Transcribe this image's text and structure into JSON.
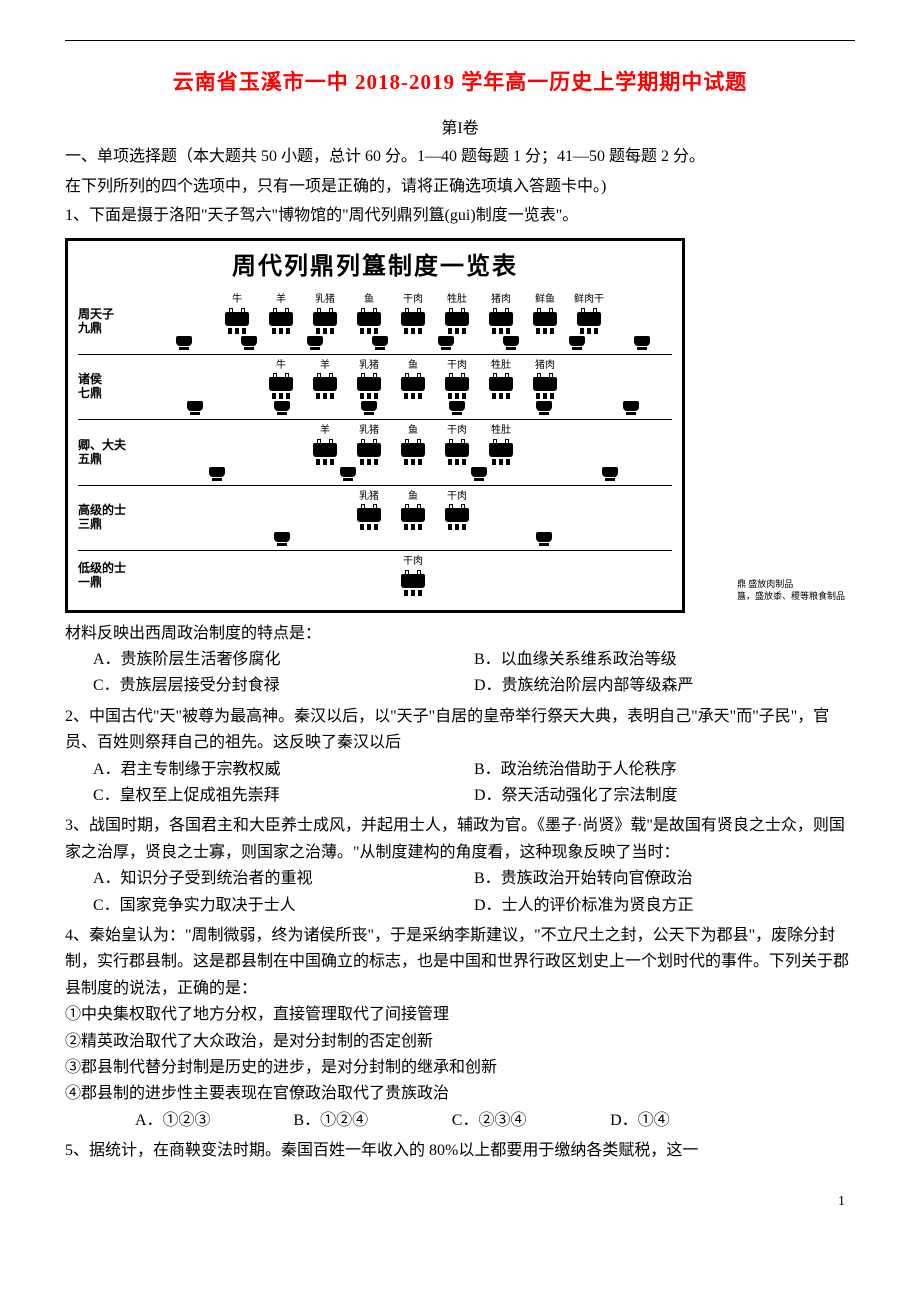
{
  "page": {
    "title": "云南省玉溪市一中 2018-2019 学年高一历史上学期期中试题",
    "subtitle": "第I卷",
    "instruction1": "一、单项选择题（本大题共 50 小题，总计 60 分。1—40 题每题 1 分；41—50 题每题 2 分。",
    "instruction2": "在下列所列的四个选项中，只有一项是正确的，请将正确选项填入答题卡中。)",
    "page_number": "1"
  },
  "chart": {
    "title": "周代列鼎列簋制度一览表",
    "rows": [
      {
        "label": "周天子\n九鼎",
        "ding_labels": [
          "牛",
          "羊",
          "乳猪",
          "鱼",
          "干肉",
          "牲肚",
          "猪肉",
          "鲜鱼",
          "鲜肉干"
        ],
        "ding_count": 9,
        "gui_count": 8
      },
      {
        "label": "诸侯\n七鼎",
        "ding_labels": [
          "牛",
          "羊",
          "乳猪",
          "鱼",
          "干肉",
          "牲肚",
          "猪肉"
        ],
        "ding_count": 7,
        "gui_count": 6
      },
      {
        "label": "卿、大夫\n五鼎",
        "ding_labels": [
          "羊",
          "乳猪",
          "鱼",
          "干肉",
          "牲肚"
        ],
        "ding_count": 5,
        "gui_count": 4
      },
      {
        "label": "高级的士\n三鼎",
        "ding_labels": [
          "乳猪",
          "鱼",
          "干肉"
        ],
        "ding_count": 3,
        "gui_count": 2
      },
      {
        "label": "低级的士\n一鼎",
        "ding_labels": [
          "干肉"
        ],
        "ding_count": 1,
        "gui_count": 0
      }
    ],
    "legend1": "鼎 盛放肉制品",
    "legend2": "簋，盛放黍、稷等粮食制品"
  },
  "q1": {
    "text": "1、下面是摄于洛阳\"天子驾六\"博物馆的\"周代列鼎列簋(gui)制度一览表\"。",
    "followup": "材料反映出西周政治制度的特点是：",
    "a": "A．贵族阶层生活奢侈腐化",
    "b": "B．以血缘关系维系政治等级",
    "c": "C．贵族层层接受分封食禄",
    "d": "D．贵族统治阶层内部等级森严"
  },
  "q2": {
    "text": "2、中国古代\"天\"被尊为最高神。秦汉以后，以\"天子\"自居的皇帝举行祭天大典，表明自己\"承天\"而\"子民\"，官员、百姓则祭拜自己的祖先。这反映了秦汉以后",
    "a": "A．君主专制缘于宗教权威",
    "b": "B．政治统治借助于人伦秩序",
    "c": "C．皇权至上促成祖先崇拜",
    "d": "D．祭天活动强化了宗法制度"
  },
  "q3": {
    "text": "3、战国时期，各国君主和大臣养士成风，并起用士人，辅政为官。《墨子·尚贤》载\"是故国有贤良之士众，则国家之治厚，贤良之士寡，则国家之治薄。\"从制度建构的角度看，这种现象反映了当时：",
    "a": "A．知识分子受到统治者的重视",
    "b": "B．贵族政治开始转向官僚政治",
    "c": "C．国家竞争实力取决于士人",
    "d": "D．士人的评价标准为贤良方正"
  },
  "q4": {
    "text": "4、秦始皇认为：\"周制微弱，终为诸侯所丧\"，于是采纳李斯建议，\"不立尺土之封，公天下为郡县\"，废除分封制，实行郡县制。这是郡县制在中国确立的标志，也是中国和世界行政区划史上一个划时代的事件。下列关于郡县制度的说法，正确的是：",
    "s1": "①中央集权取代了地方分权，直接管理取代了间接管理",
    "s2": "②精英政治取代了大众政治，是对分封制的否定创新",
    "s3": "③郡县制代替分封制是历史的进步，是对分封制的继承和创新",
    "s4": "④郡县制的进步性主要表现在官僚政治取代了贵族政治",
    "a": "A．①②③",
    "b": "B．①②④",
    "c": "C．②③④",
    "d": "D．①④"
  },
  "q5": {
    "text": "5、据统计，在商鞅变法时期。秦国百姓一年收入的 80%以上都要用于缴纳各类赋税，这一"
  },
  "colors": {
    "title_color": "#ff0000",
    "text_color": "#000000",
    "background": "#ffffff",
    "border": "#000000"
  }
}
